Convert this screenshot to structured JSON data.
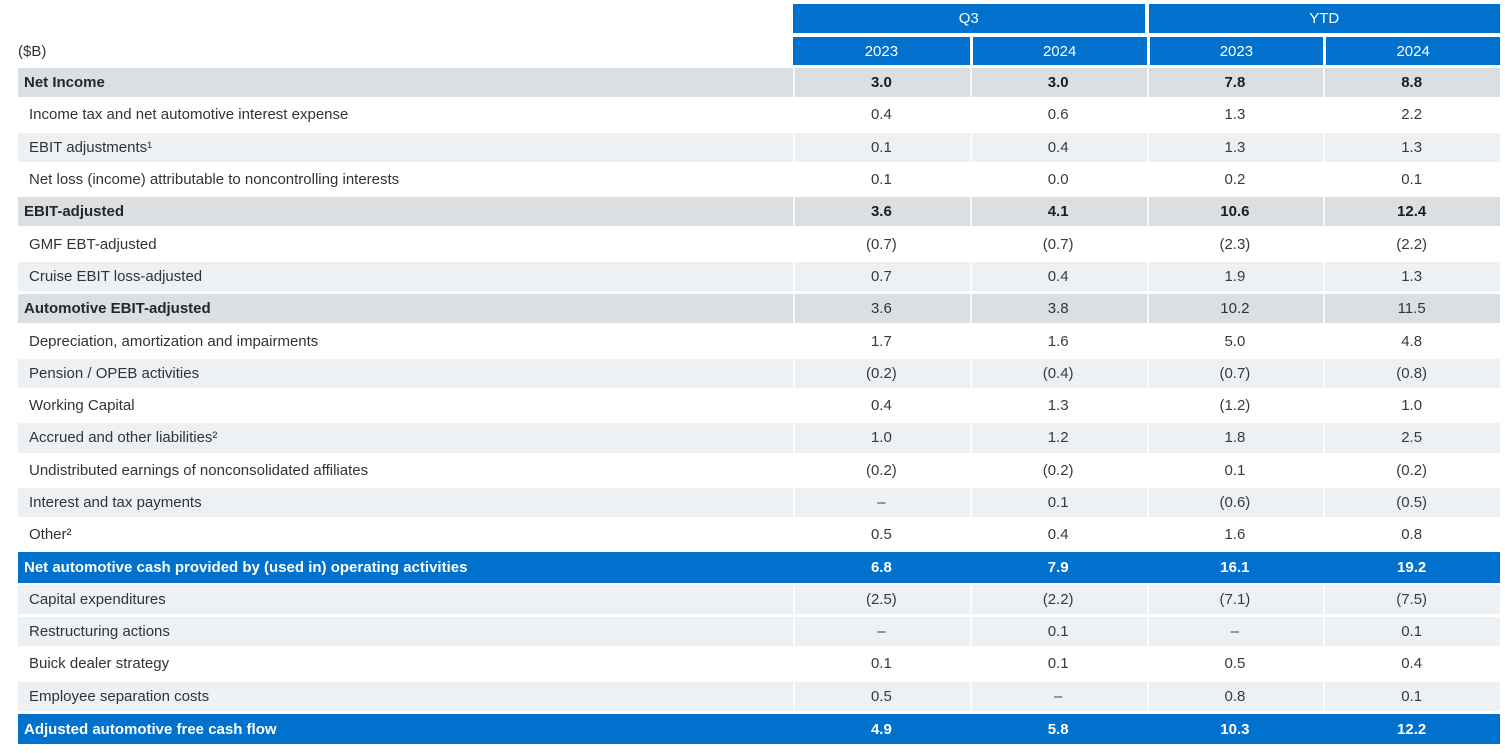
{
  "unit_label": "($B)",
  "colors": {
    "accent_blue": "#0072CE",
    "section_gray": "#dcdfe1",
    "band_light": "#edf1f4",
    "text_dark": "#333333"
  },
  "table": {
    "groups": [
      "Q3",
      "YTD"
    ],
    "years": [
      "2023",
      "2024",
      "2023",
      "2024"
    ],
    "rows": [
      {
        "label": "Net Income",
        "values": [
          "3.0",
          "3.0",
          "7.8",
          "8.8"
        ],
        "style": "section",
        "bold_values": true
      },
      {
        "label": "Income tax and net automotive interest expense",
        "values": [
          "0.4",
          "0.6",
          "1.3",
          "2.2"
        ],
        "style": "item-white",
        "bold_values": false
      },
      {
        "label": "EBIT adjustments¹",
        "values": [
          "0.1",
          "0.4",
          "1.3",
          "1.3"
        ],
        "style": "item-light",
        "bold_values": false
      },
      {
        "label": "Net loss (income) attributable to noncontrolling interests",
        "values": [
          "0.1",
          "0.0",
          "0.2",
          "0.1"
        ],
        "style": "item-white",
        "bold_values": false
      },
      {
        "label": "EBIT-adjusted",
        "values": [
          "3.6",
          "4.1",
          "10.6",
          "12.4"
        ],
        "style": "section",
        "bold_values": true
      },
      {
        "label": "GMF EBT-adjusted",
        "values": [
          "(0.7)",
          "(0.7)",
          "(2.3)",
          "(2.2)"
        ],
        "style": "item-white",
        "bold_values": false
      },
      {
        "label": "Cruise EBIT loss-adjusted",
        "values": [
          "0.7",
          "0.4",
          "1.9",
          "1.3"
        ],
        "style": "item-light",
        "bold_values": false
      },
      {
        "label": "Automotive EBIT-adjusted",
        "values": [
          "3.6",
          "3.8",
          "10.2",
          "11.5"
        ],
        "style": "section",
        "bold_values": false
      },
      {
        "label": "Depreciation, amortization and impairments",
        "values": [
          "1.7",
          "1.6",
          "5.0",
          "4.8"
        ],
        "style": "item-white",
        "bold_values": false
      },
      {
        "label": "Pension / OPEB activities",
        "values": [
          "(0.2)",
          "(0.4)",
          "(0.7)",
          "(0.8)"
        ],
        "style": "item-light",
        "bold_values": false
      },
      {
        "label": "Working Capital",
        "values": [
          "0.4",
          "1.3",
          "(1.2)",
          "1.0"
        ],
        "style": "item-white",
        "bold_values": false
      },
      {
        "label": "Accrued and other liabilities²",
        "values": [
          "1.0",
          "1.2",
          "1.8",
          "2.5"
        ],
        "style": "item-light",
        "bold_values": false
      },
      {
        "label": "Undistributed earnings of nonconsolidated affiliates",
        "values": [
          "(0.2)",
          "(0.2)",
          "0.1",
          "(0.2)"
        ],
        "style": "item-white",
        "bold_values": false
      },
      {
        "label": "Interest and tax payments",
        "values": [
          "–",
          "0.1",
          "(0.6)",
          "(0.5)"
        ],
        "style": "item-light",
        "bold_values": false
      },
      {
        "label": "Other²",
        "values": [
          "0.5",
          "0.4",
          "1.6",
          "0.8"
        ],
        "style": "item-white",
        "bold_values": false
      },
      {
        "label": "Net automotive cash provided by (used in) operating activities",
        "values": [
          "6.8",
          "7.9",
          "16.1",
          "19.2"
        ],
        "style": "total",
        "bold_values": true
      },
      {
        "label": "Capital expenditures",
        "values": [
          "(2.5)",
          "(2.2)",
          "(7.1)",
          "(7.5)"
        ],
        "style": "item-light",
        "bold_values": false
      },
      {
        "label": "Restructuring actions",
        "values": [
          "–",
          "0.1",
          "–",
          "0.1"
        ],
        "style": "item-light",
        "bold_values": false
      },
      {
        "label": "Buick dealer strategy",
        "values": [
          "0.1",
          "0.1",
          "0.5",
          "0.4"
        ],
        "style": "item-white",
        "bold_values": false
      },
      {
        "label": "Employee separation costs",
        "values": [
          "0.5",
          "–",
          "0.8",
          "0.1"
        ],
        "style": "item-light",
        "bold_values": false
      },
      {
        "label": "Adjusted automotive free cash flow",
        "values": [
          "4.9",
          "5.8",
          "10.3",
          "12.2"
        ],
        "style": "total",
        "bold_values": true
      }
    ]
  }
}
